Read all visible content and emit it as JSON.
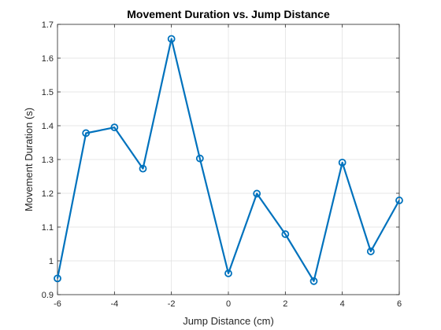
{
  "chart_data": {
    "type": "line",
    "title": "Movement Duration vs. Jump Distance",
    "xlabel": "Jump Distance (cm)",
    "ylabel": "Movement Duration (s)",
    "xlim": [
      -6,
      6
    ],
    "ylim": [
      0.9,
      1.7
    ],
    "xticks": [
      -6,
      -4,
      -2,
      0,
      2,
      4,
      6
    ],
    "yticks": [
      0.9,
      1,
      1.1,
      1.2,
      1.3,
      1.4,
      1.5,
      1.6,
      1.7
    ],
    "xtick_labels": [
      "-6",
      "-4",
      "-2",
      "0",
      "2",
      "4",
      "6"
    ],
    "ytick_labels": [
      "0.9",
      "1",
      "1.1",
      "1.2",
      "1.3",
      "1.4",
      "1.5",
      "1.6",
      "1.7"
    ],
    "grid": true,
    "series": [
      {
        "x": [
          -6,
          -5,
          -4,
          -3,
          -2,
          -1,
          0,
          1,
          2,
          3,
          4,
          5,
          6
        ],
        "y": [
          0.948,
          1.378,
          1.395,
          1.273,
          1.657,
          1.303,
          0.963,
          1.199,
          1.079,
          0.94,
          1.291,
          1.028,
          1.179
        ],
        "marker": "circle",
        "color": "#0072BD"
      }
    ]
  }
}
